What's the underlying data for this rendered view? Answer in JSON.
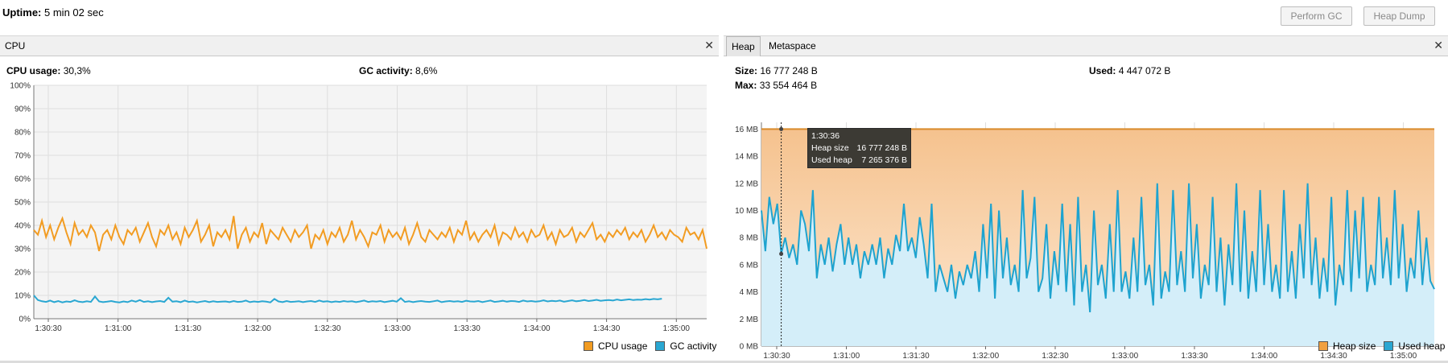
{
  "top": {
    "uptime_label": "Uptime:",
    "uptime_value": "5 min 02 sec",
    "perform_gc": "Perform GC",
    "heap_dump": "Heap Dump"
  },
  "cpu": {
    "tab": "CPU",
    "cpu_label": "CPU usage:",
    "cpu_value": "30,3%",
    "gc_label": "GC activity:",
    "gc_value": "8,6%",
    "legend_cpu": "CPU usage",
    "legend_gc": "GC activity"
  },
  "mem": {
    "tab_heap": "Heap",
    "tab_meta": "Metaspace",
    "size_label": "Size:",
    "size_value": "16 777 248 B",
    "used_label": "Used:",
    "used_value": "4 447 072 B",
    "max_label": "Max:",
    "max_value": "33 554 464 B",
    "legend_heap": "Heap size",
    "legend_used": "Used heap",
    "tooltip": {
      "time": "1:30:36",
      "row1_label": "Heap size",
      "row1_value": "16 777 248 B",
      "row2_label": "Used heap",
      "row2_value": "7 265 376 B"
    }
  },
  "colors": {
    "cpu": "#f29c22",
    "gc": "#2aa7d2",
    "heap": "#d98a2b",
    "used": "#1ea3cf"
  },
  "chart_data": [
    {
      "type": "line",
      "ylabel": "",
      "ylim": [
        0,
        100
      ],
      "y_ticks": [
        "0%",
        "10%",
        "20%",
        "30%",
        "40%",
        "50%",
        "60%",
        "70%",
        "80%",
        "90%",
        "100%"
      ],
      "x_ticks": [
        "1:30:30",
        "1:31:00",
        "1:31:30",
        "1:32:00",
        "1:32:30",
        "1:33:00",
        "1:33:30",
        "1:34:00",
        "1:34:30",
        "1:35:00"
      ],
      "series": [
        {
          "name": "CPU usage",
          "values": [
            38,
            36,
            42,
            35,
            40,
            34,
            39,
            43,
            37,
            32,
            41,
            36,
            38,
            35,
            40,
            37,
            29,
            36,
            38,
            34,
            40,
            35,
            32,
            38,
            36,
            39,
            33,
            37,
            41,
            35,
            31,
            38,
            36,
            40,
            34,
            37,
            32,
            39,
            35,
            38,
            42,
            33,
            36,
            40,
            31,
            37,
            35,
            38,
            34,
            44,
            30,
            36,
            39,
            33,
            37,
            35,
            41,
            32,
            38,
            36,
            34,
            39,
            36,
            33,
            38,
            35,
            37,
            40,
            30,
            36,
            34,
            38,
            32,
            37,
            35,
            39,
            33,
            36,
            42,
            34,
            38,
            35,
            31,
            37,
            36,
            40,
            33,
            38,
            35,
            37,
            34,
            39,
            32,
            36,
            41,
            35,
            33,
            38,
            36,
            34,
            37,
            35,
            39,
            33,
            38,
            36,
            42,
            34,
            37,
            33,
            36,
            38,
            35,
            40,
            32,
            37,
            36,
            34,
            39,
            35,
            37,
            33,
            38,
            35,
            36,
            40,
            34,
            37,
            32,
            38,
            35,
            36,
            39,
            33,
            37,
            35,
            38,
            41,
            34,
            36,
            33,
            37,
            35,
            38,
            36,
            39,
            34,
            37,
            35,
            38,
            33,
            36,
            40,
            35,
            37,
            34,
            38,
            36,
            35,
            33,
            39,
            36,
            37,
            34,
            38,
            30
          ]
        },
        {
          "name": "GC activity",
          "values": [
            10,
            8,
            7.5,
            7.2,
            7.8,
            7.1,
            7.6,
            7,
            7.4,
            7.2,
            7.9,
            7.3,
            7.1,
            7.5,
            7.2,
            9.5,
            7.4,
            7.1,
            7.3,
            7.6,
            7.2,
            7,
            7.4,
            7.1,
            7.8,
            7.3,
            8,
            7.2,
            7.5,
            7.1,
            7.4,
            7.6,
            7.2,
            9,
            7.3,
            7.5,
            7.1,
            7.8,
            7.2,
            7.4,
            7,
            7.3,
            7.6,
            7.1,
            7.5,
            7.2,
            7.3,
            7.4,
            7.1,
            7.6,
            7.2,
            7.3,
            7.8,
            7.1,
            7.4,
            7.2,
            7.5,
            7.3,
            7,
            8.5,
            7.4,
            7.1,
            7.6,
            7.2,
            7.3,
            7.5,
            7.1,
            7.4,
            7.6,
            7.2,
            7.8,
            7.3,
            7.5,
            7.1,
            7.4,
            7.2,
            7.6,
            7.3,
            7.5,
            7.1,
            7.4,
            7.8,
            7.2,
            7.5,
            7.3,
            7.6,
            7.1,
            7.4,
            7.7,
            7.3,
            8.8,
            7.2,
            7.5,
            7.1,
            7.4,
            7.6,
            7.3,
            7.2,
            7.5,
            7.8,
            7.1,
            7.4,
            7.6,
            7.3,
            7.5,
            7.2,
            7.7,
            7.4,
            7.3,
            7.6,
            7.1,
            7.5,
            7.8,
            7.2,
            7.4,
            7.7,
            7.3,
            7.6,
            7.5,
            7.2,
            7.8,
            7.4,
            7.6,
            7.3,
            7.5,
            7.9,
            7.4,
            7.7,
            7.5,
            7.8,
            7.3,
            7.6,
            7.9,
            7.5,
            7.7,
            8,
            7.6,
            7.8,
            8.1,
            7.7,
            7.9,
            8,
            7.8,
            8.2,
            7.9,
            8.1,
            8.3,
            8,
            8.2,
            8.1,
            8.4,
            8.2,
            8.5,
            8.3,
            8.6
          ]
        }
      ]
    },
    {
      "type": "area",
      "ylim": [
        0,
        16.5
      ],
      "y_ticks": [
        "0 MB",
        "2 MB",
        "4 MB",
        "6 MB",
        "8 MB",
        "10 MB",
        "12 MB",
        "14 MB",
        "16 MB"
      ],
      "x_ticks": [
        "1:30:30",
        "1:31:00",
        "1:31:30",
        "1:32:00",
        "1:32:30",
        "1:33:00",
        "1:33:30",
        "1:34:00",
        "1:34:30",
        "1:35:00"
      ],
      "series": [
        {
          "name": "Heap size",
          "values": [
            16,
            16
          ]
        },
        {
          "name": "Used heap",
          "values": [
            10,
            7,
            11,
            9,
            10.5,
            6.8,
            8,
            6.5,
            7.5,
            6,
            10,
            9,
            7,
            11.5,
            5,
            7.5,
            6,
            8,
            5.5,
            7.5,
            9,
            6,
            8,
            6,
            7.5,
            5,
            7,
            6,
            7.5,
            6,
            8,
            5,
            7.2,
            6,
            8.2,
            7,
            10.5,
            7,
            8,
            6.5,
            9.5,
            7.5,
            5,
            10.5,
            4,
            6,
            5,
            4,
            6,
            3.5,
            5.5,
            4.5,
            6,
            5,
            7,
            4,
            9,
            5,
            10.5,
            3.5,
            10,
            5,
            8,
            4.5,
            6,
            4,
            11.5,
            5,
            6.5,
            11,
            4,
            5,
            9,
            3.5,
            7,
            4.5,
            10.5,
            4,
            9,
            3,
            11,
            4,
            6,
            2.5,
            10,
            4.5,
            6,
            3.5,
            9,
            4,
            11.5,
            4,
            5.5,
            3.5,
            8,
            4,
            11,
            4.5,
            6,
            3,
            12,
            3.5,
            5.5,
            4,
            11.5,
            4.5,
            7,
            4,
            12,
            5,
            9,
            3.5,
            6,
            4.5,
            11,
            4,
            8,
            3,
            7.5,
            4.5,
            12,
            4,
            10,
            3.5,
            7,
            4,
            11.5,
            4.5,
            9,
            4,
            6,
            3.5,
            11.5,
            4,
            7,
            3.5,
            9,
            5,
            12,
            4.5,
            8,
            3.5,
            6.5,
            4,
            11,
            3,
            6,
            4.5,
            11.5,
            4,
            10,
            5,
            11,
            4,
            6,
            4.5,
            11,
            5,
            8,
            4.5,
            11.5,
            5,
            9,
            4,
            6.5,
            5,
            10,
            4.5,
            8,
            4.8,
            4.2
          ]
        }
      ]
    }
  ]
}
